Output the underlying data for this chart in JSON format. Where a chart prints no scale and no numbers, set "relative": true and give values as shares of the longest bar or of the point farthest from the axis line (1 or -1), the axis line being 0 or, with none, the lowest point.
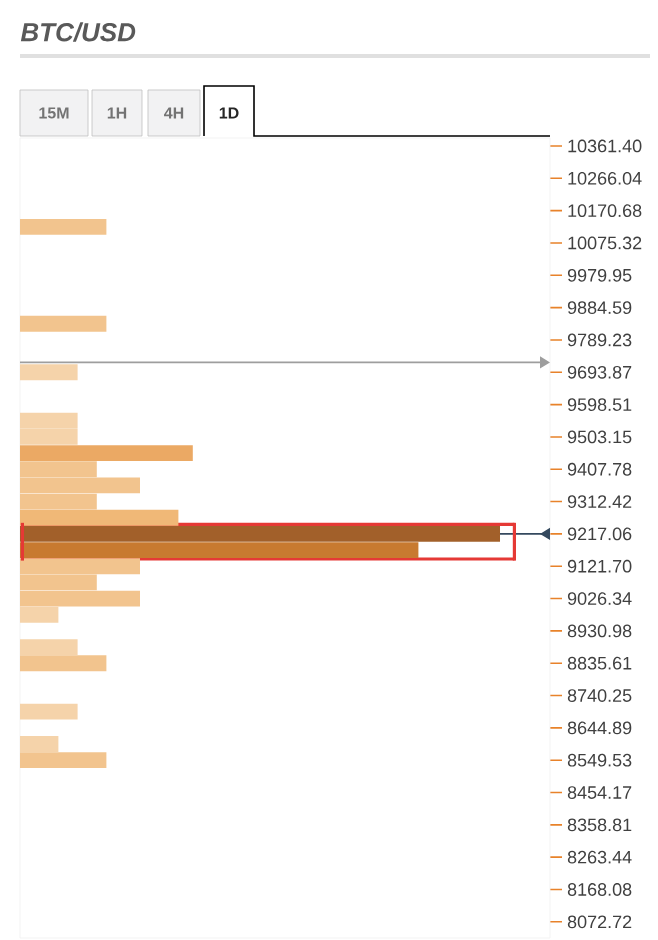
{
  "chart_data": {
    "type": "bar",
    "orientation": "horizontal",
    "relative": true,
    "title": "BTC/USD",
    "annotations": [
      "15M",
      "1H",
      "4H",
      "1D"
    ],
    "x": [
      10123.0,
      9836.91,
      9693.87,
      9550.83,
      9503.15,
      9455.47,
      9407.78,
      9360.1,
      9312.42,
      9264.74,
      9217.06,
      9169.38,
      9121.7,
      9074.02,
      9026.34,
      8978.66,
      8883.3,
      8835.61,
      8692.57,
      8597.21,
      8549.53
    ],
    "values": [
      0.18,
      0.18,
      0.12,
      0.12,
      0.12,
      0.36,
      0.16,
      0.25,
      0.16,
      0.33,
      1,
      0.83,
      0.25,
      0.16,
      0.25,
      0.08,
      0.12,
      0.18,
      0.12,
      0.08,
      0.18
    ],
    "colors": [
      "#f2c48e",
      "#f2c48e",
      "#f5d3aa",
      "#f5d3aa",
      "#f5d3aa",
      "#eba964",
      "#f2c48e",
      "#f2c48e",
      "#f2c48e",
      "#f0b877",
      "#a2602a",
      "#c87a30",
      "#f2c48e",
      "#f2c48e",
      "#f2c48e",
      "#f5d3aa",
      "#f5d3aa",
      "#f2c48e",
      "#f5d3aa",
      "#f5d3aa",
      "#f2c48e"
    ],
    "ylim": [
      8025,
      10385
    ],
    "yticks": [
      {
        "value": 10361.4,
        "label": "10361.40"
      },
      {
        "value": 10266.04,
        "label": "10266.04"
      },
      {
        "value": 10170.68,
        "label": "10170.68"
      },
      {
        "value": 10075.32,
        "label": "10075.32"
      },
      {
        "value": 9979.95,
        "label": "9979.95"
      },
      {
        "value": 9884.59,
        "label": "9884.59"
      },
      {
        "value": 9789.23,
        "label": "9789.23"
      },
      {
        "value": 9693.87,
        "label": "9693.87"
      },
      {
        "value": 9598.51,
        "label": "9598.51"
      },
      {
        "value": 9503.15,
        "label": "9503.15"
      },
      {
        "value": 9407.78,
        "label": "9407.78"
      },
      {
        "value": 9312.42,
        "label": "9312.42"
      },
      {
        "value": 9217.06,
        "label": "9217.06"
      },
      {
        "value": 9121.7,
        "label": "9121.70"
      },
      {
        "value": 9026.34,
        "label": "9026.34"
      },
      {
        "value": 8930.98,
        "label": "8930.98"
      },
      {
        "value": 8835.61,
        "label": "8835.61"
      },
      {
        "value": 8740.25,
        "label": "8740.25"
      },
      {
        "value": 8644.89,
        "label": "8644.89"
      },
      {
        "value": 8549.53,
        "label": "8549.53"
      },
      {
        "value": 8454.17,
        "label": "8454.17"
      },
      {
        "value": 8358.81,
        "label": "8358.81"
      },
      {
        "value": 8263.44,
        "label": "8263.44"
      },
      {
        "value": 8168.08,
        "label": "8168.08"
      },
      {
        "value": 8072.72,
        "label": "8072.72"
      }
    ],
    "ref_lines": [
      {
        "axis": "y",
        "value": 9723,
        "color": "#9e9e9e"
      },
      {
        "axis": "y",
        "value": 9217.06,
        "color": "#34495e"
      },
      {
        "axis": "y",
        "value": 9245,
        "color": "#e53935"
      },
      {
        "axis": "y",
        "value": 9143,
        "color": "#e53935"
      }
    ],
    "grid": false
  }
}
